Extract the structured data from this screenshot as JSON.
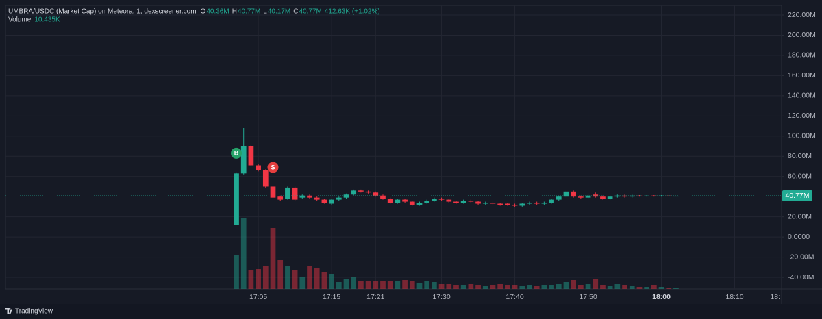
{
  "chart_data": {
    "type": "candlestick",
    "title": "UMBRA/USDC (Market Cap) on Meteora, 1, dexscreener.com",
    "legend": [
      {
        "key": "O",
        "label": "40.36M"
      },
      {
        "key": "H",
        "label": "40.77M"
      },
      {
        "key": "L",
        "label": "40.17M"
      },
      {
        "key": "C",
        "label": "40.77M"
      }
    ],
    "change_label": "412.63K (+1.02%)",
    "volume_title": "Volume",
    "volume_label": "10.435K",
    "up_color": "#22ab94",
    "down_color": "#f23645",
    "x": [
      1022,
      1023,
      1024,
      1025,
      1026,
      1027,
      1028,
      1029,
      1030,
      1031,
      1032,
      1033,
      1034,
      1035,
      1036,
      1037,
      1038,
      1039,
      1040,
      1041,
      1042,
      1043,
      1044,
      1045,
      1046,
      1047,
      1048,
      1049,
      1050,
      1051,
      1052,
      1053,
      1054,
      1055,
      1056,
      1057,
      1058,
      1059,
      1060,
      1061,
      1062,
      1063,
      1064,
      1065,
      1066,
      1067,
      1068,
      1069,
      1070,
      1071,
      1072,
      1073,
      1074,
      1075,
      1076,
      1077,
      1078,
      1079,
      1080,
      1081,
      1082
    ],
    "open": [
      12,
      63,
      90,
      71,
      66,
      50,
      40,
      38,
      49,
      39,
      41,
      39,
      37,
      33,
      37,
      39,
      42,
      46,
      45,
      44,
      41,
      38,
      34,
      37,
      35,
      32,
      34,
      36,
      38,
      37,
      35,
      34,
      36,
      35,
      33,
      34,
      33,
      33,
      32,
      31,
      33,
      34,
      33,
      34,
      37,
      40,
      45,
      40,
      39,
      42,
      40,
      38,
      40,
      41,
      40,
      41,
      40.5,
      41,
      40.5,
      41,
      40.36
    ],
    "high": [
      64,
      108,
      91,
      72,
      67,
      51,
      41,
      50,
      50,
      42,
      42,
      40,
      38,
      38,
      40,
      43,
      47,
      47,
      46,
      45,
      42,
      39,
      38,
      38,
      36,
      35,
      37,
      39,
      39,
      38,
      36,
      37,
      37,
      36,
      35,
      35,
      34,
      34,
      33,
      34,
      35,
      35,
      35,
      38,
      41,
      46,
      46,
      41,
      42,
      44,
      41,
      41,
      42,
      42,
      42,
      41.5,
      41.5,
      41.5,
      41.5,
      41.2,
      40.77
    ],
    "low": [
      12,
      62,
      70,
      65,
      49,
      30,
      36,
      37,
      36,
      38,
      38,
      36,
      33,
      32,
      36,
      38,
      41,
      44,
      43,
      40,
      37,
      33,
      33,
      34,
      31,
      31,
      33,
      35,
      36,
      34,
      33,
      33,
      34,
      32,
      32,
      32,
      31,
      31,
      30,
      30,
      32,
      32,
      32,
      33,
      36,
      39,
      39,
      38,
      38,
      39,
      37,
      37,
      39,
      39,
      39,
      40,
      40,
      40,
      40,
      40.2,
      40.17
    ],
    "close": [
      63,
      90,
      71,
      66,
      50,
      39,
      37,
      49,
      37,
      41,
      39,
      37,
      34,
      37,
      39,
      42,
      46,
      45,
      44,
      41,
      38,
      34,
      37,
      35,
      32,
      34,
      36,
      38,
      37,
      35,
      34,
      36,
      35,
      33,
      34,
      33,
      32,
      32,
      31,
      33,
      34,
      33,
      34,
      37,
      40,
      45,
      40,
      39,
      41,
      40,
      38,
      40,
      41,
      40,
      41,
      40.5,
      41,
      40.5,
      41,
      40.36,
      40.77
    ],
    "volume": [
      500,
      1040,
      270,
      290,
      340,
      890,
      420,
      330,
      270,
      180,
      330,
      300,
      240,
      220,
      100,
      140,
      180,
      120,
      110,
      120,
      120,
      120,
      110,
      130,
      110,
      90,
      120,
      100,
      70,
      70,
      60,
      50,
      70,
      60,
      40,
      60,
      70,
      50,
      60,
      40,
      50,
      40,
      50,
      50,
      70,
      100,
      130,
      60,
      70,
      140,
      60,
      40,
      70,
      50,
      40,
      30,
      30,
      50,
      30,
      20,
      10.435
    ],
    "xlim": [
      990.5,
      1096.4
    ],
    "xticks": [
      {
        "value": 1025,
        "label": "17:05"
      },
      {
        "value": 1035,
        "label": "17:15"
      },
      {
        "value": 1041,
        "label": "17:21"
      },
      {
        "value": 1050,
        "label": "17:30"
      },
      {
        "value": 1060,
        "label": "17:40"
      },
      {
        "value": 1070,
        "label": "17:50"
      },
      {
        "value": 1080,
        "label": "18:00"
      },
      {
        "value": 1090,
        "label": "18:10"
      },
      {
        "value": 1100,
        "label": "18:"
      }
    ],
    "ylim": [
      -51.5,
      229.5
    ],
    "yticks": [
      {
        "value": 220,
        "label": "220.00M"
      },
      {
        "value": 200,
        "label": "200.00M"
      },
      {
        "value": 180,
        "label": "180.00M"
      },
      {
        "value": 160,
        "label": "160.00M"
      },
      {
        "value": 140,
        "label": "140.00M"
      },
      {
        "value": 120,
        "label": "120.00M"
      },
      {
        "value": 100,
        "label": "100.00M"
      },
      {
        "value": 80,
        "label": "80.00M"
      },
      {
        "value": 60,
        "label": "60.00M"
      },
      {
        "value": 20,
        "label": "20.00M"
      },
      {
        "value": 0,
        "label": "0.0000"
      },
      {
        "value": -20,
        "label": "-20.00M"
      },
      {
        "value": -40,
        "label": "-40.00M"
      }
    ],
    "volume_lim": [
      0,
      4140
    ],
    "last_price": {
      "value": 40.77,
      "label": "40.77M"
    },
    "markers": [
      {
        "label": "B",
        "x": 1022,
        "price": 83,
        "color": "#26a269"
      },
      {
        "label": "S",
        "x": 1027,
        "price": 69,
        "color": "#e53e3e"
      }
    ],
    "grid": true,
    "footer": "TradingView"
  }
}
